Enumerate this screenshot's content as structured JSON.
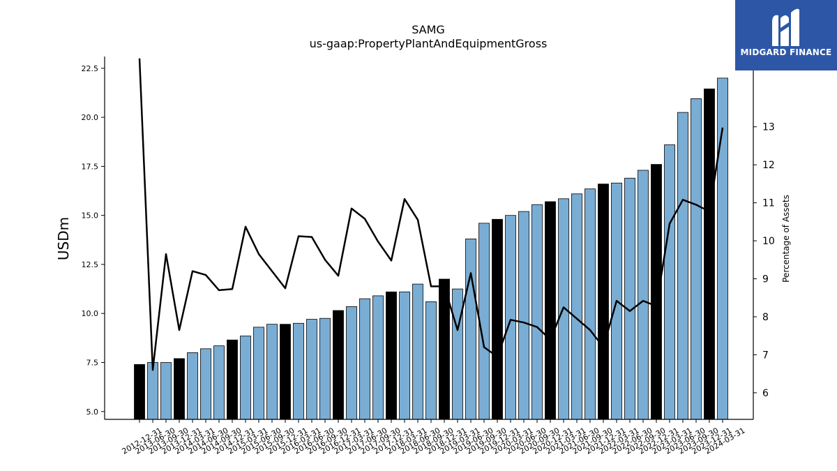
{
  "logo": {
    "text": "MIDGARD FINANCE"
  },
  "chart_data": {
    "type": "bar",
    "title": "SAMG",
    "subtitle": "us-gaap:PropertyPlantAndEquipmentGross",
    "ylabel": "USDm",
    "y2label": "Percentage of Assets",
    "ylim": [
      4.6,
      23.1
    ],
    "y2lim": [
      5.3,
      14.85
    ],
    "yticks": [
      "5.0",
      "7.5",
      "10.0",
      "12.5",
      "15.0",
      "17.5",
      "20.0",
      "22.5"
    ],
    "y2ticks": [
      "6",
      "7",
      "8",
      "9",
      "10",
      "11",
      "12",
      "13"
    ],
    "categories": [
      "2012-12-31",
      "2013-06-30",
      "2013-09-30",
      "2013-12-31",
      "2014-03-31",
      "2014-06-30",
      "2014-09-30",
      "2014-12-31",
      "2015-03-31",
      "2015-06-30",
      "2015-09-30",
      "2015-12-31",
      "2016-03-31",
      "2016-06-30",
      "2016-09-30",
      "2016-12-31",
      "2017-03-31",
      "2017-06-30",
      "2017-09-30",
      "2017-12-31",
      "2018-03-31",
      "2018-06-30",
      "2018-09-30",
      "2018-12-31",
      "2019-03-31",
      "2019-06-30",
      "2019-09-30",
      "2019-12-31",
      "2020-03-31",
      "2020-06-30",
      "2020-09-30",
      "2020-12-31",
      "2021-03-31",
      "2021-06-30",
      "2021-09-30",
      "2021-12-31",
      "2022-03-31",
      "2022-06-30",
      "2022-09-30",
      "2022-12-31",
      "2023-03-31",
      "2023-06-30",
      "2023-09-30",
      "2023-12-31",
      "2024-03-31"
    ],
    "values": [
      7.4,
      7.5,
      7.5,
      7.7,
      8.0,
      8.2,
      8.35,
      8.65,
      8.85,
      9.3,
      9.45,
      9.45,
      9.5,
      9.7,
      9.75,
      10.15,
      10.35,
      10.75,
      10.9,
      11.1,
      11.1,
      11.5,
      10.6,
      11.75,
      11.25,
      13.8,
      14.6,
      14.8,
      15.0,
      15.2,
      15.55,
      15.7,
      15.85,
      16.1,
      16.35,
      16.6,
      16.65,
      16.9,
      17.3,
      17.6,
      18.6,
      20.25,
      20.95,
      21.45,
      22.0
    ],
    "year_end": [
      true,
      false,
      false,
      true,
      false,
      false,
      false,
      true,
      false,
      false,
      false,
      true,
      false,
      false,
      false,
      true,
      false,
      false,
      false,
      true,
      false,
      false,
      false,
      true,
      false,
      false,
      false,
      true,
      false,
      false,
      false,
      true,
      false,
      false,
      false,
      true,
      false,
      false,
      false,
      true,
      false,
      false,
      false,
      true,
      false
    ],
    "pct_of_assets": [
      14.8,
      6.6,
      9.65,
      7.65,
      9.2,
      9.1,
      8.7,
      8.73,
      10.37,
      9.65,
      9.2,
      8.75,
      10.12,
      10.1,
      9.5,
      9.08,
      10.85,
      10.58,
      9.98,
      9.48,
      11.1,
      10.55,
      8.8,
      8.8,
      7.65,
      9.15,
      7.2,
      6.95,
      7.92,
      7.85,
      7.73,
      7.4,
      8.25,
      7.95,
      7.65,
      7.2,
      8.42,
      8.15,
      8.42,
      8.28,
      10.45,
      11.08,
      10.95,
      10.77,
      12.98
    ],
    "colors": {
      "bar": "#7aadd4",
      "year_end_bar": "#000000",
      "line": "#000000"
    },
    "grid": false,
    "legend": "none"
  }
}
